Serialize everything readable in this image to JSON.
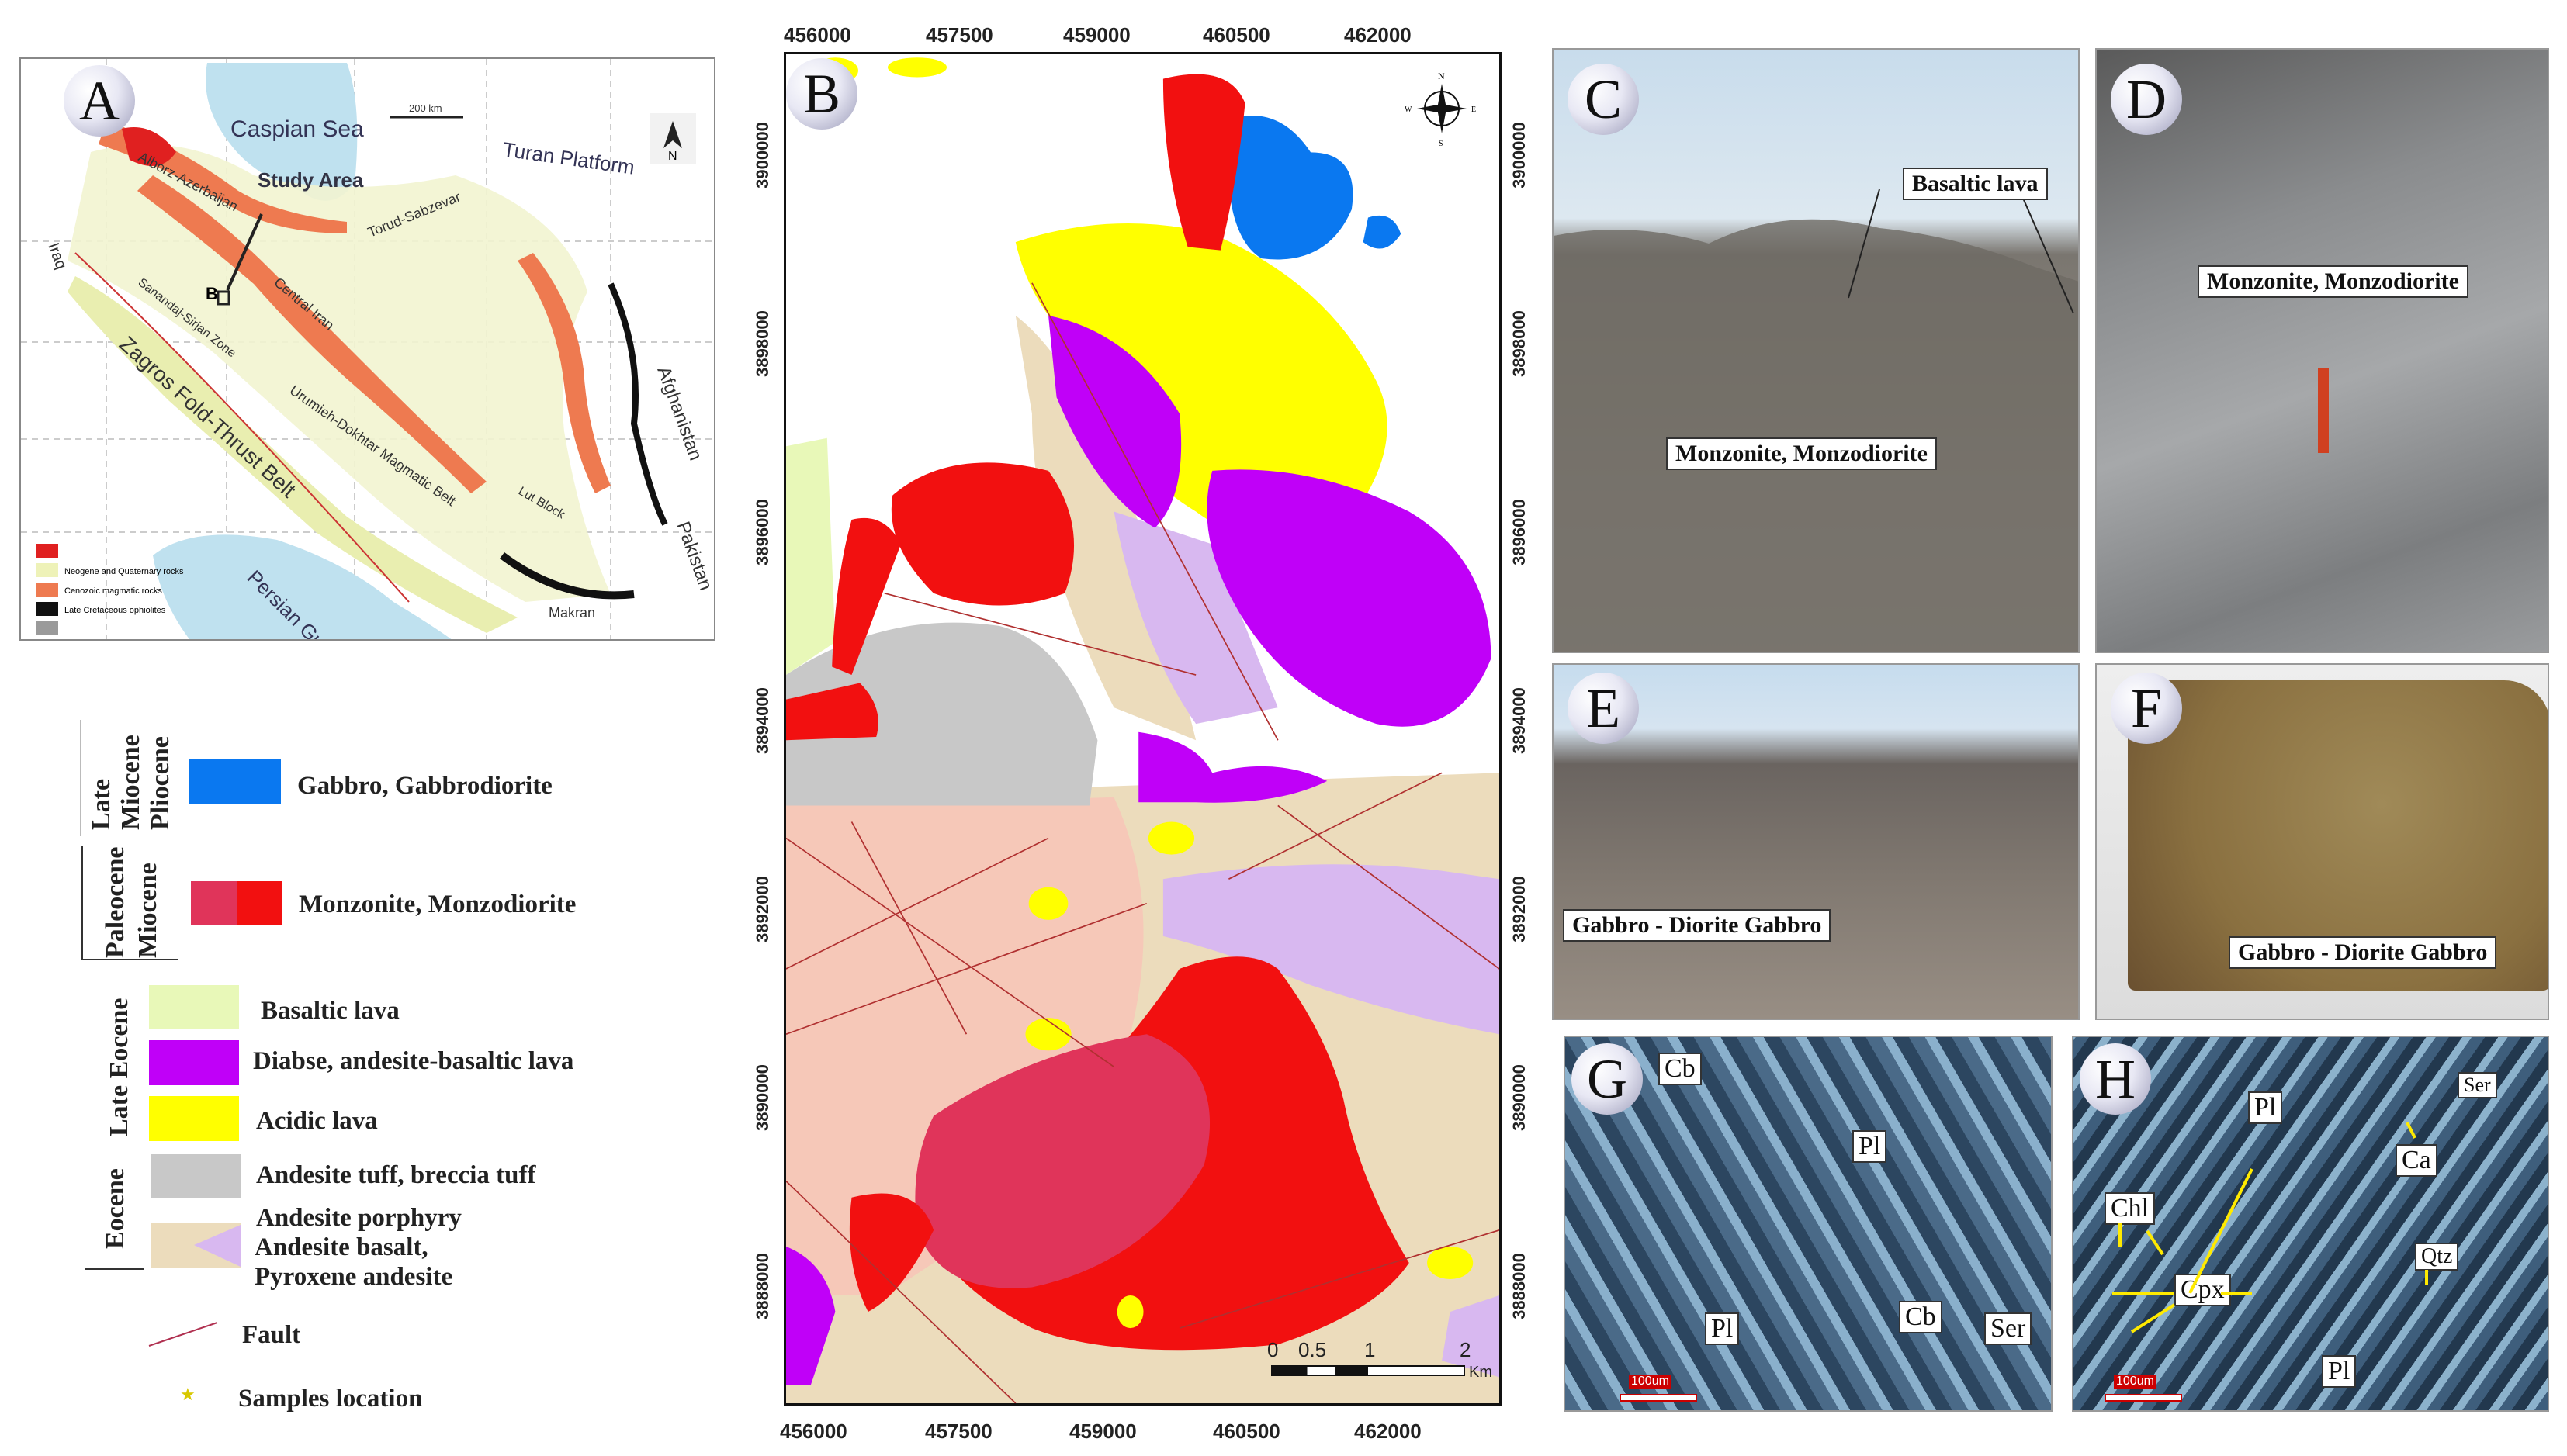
{
  "panels": {
    "a": "A",
    "b": "B",
    "c": "C",
    "d": "D",
    "e": "E",
    "f": "F",
    "g": "G",
    "h": "H"
  },
  "map_a": {
    "labels": {
      "caspian": "Caspian Sea",
      "turan": "Turan Platform",
      "study": "Study Area",
      "alborz": "Alborz-Azerbaijan",
      "torud": "Torud-Sabzevar",
      "central": "Central Iran",
      "sanandaj": "Sanandaj-Sirjan Zone",
      "zagros": "Zagros Fold-Thrust Belt",
      "urumieh": "Urumieh-Dokhtar Magmatic Belt",
      "lut": "Lut Block",
      "afghanistan": "Afghanistan",
      "pakistan": "Pakistan",
      "persian": "Persian Gulf",
      "makran": "Makran",
      "iraq": "Iraq",
      "b_marker": "B",
      "scale": "200 km",
      "north": "N"
    },
    "legend": [
      {
        "color": "#e02020",
        "label": ""
      },
      {
        "color": "#eef2b8",
        "label": "Neogene and Quaternary rocks"
      },
      {
        "color": "#ee7a50",
        "label": "Cenozoic magmatic rocks"
      },
      {
        "color": "#111111",
        "label": "Late Cretaceous ophiolites"
      },
      {
        "color": "#9a9a9a",
        "label": ""
      }
    ]
  },
  "legend_b": {
    "eras": [
      {
        "line1": "Late",
        "line2": "Miocene",
        "line3": "Pliocene"
      },
      {
        "line1": "Paleocene",
        "line2": "Miocene"
      },
      {
        "line1": "Late Eocene"
      },
      {
        "line1": "Eocene"
      }
    ],
    "units": [
      {
        "label": "Gabbro, Gabbrodiorite",
        "color": "#0a78f0"
      },
      {
        "label": "Monzonite, Monzodiorite",
        "color": "#f21010",
        "color2": "#e0345a"
      },
      {
        "label": "Basaltic lava",
        "color": "#e8f8b8"
      },
      {
        "label": "Diabse, andesite-basaltic lava",
        "color": "#c000f8"
      },
      {
        "label": "Acidic lava",
        "color": "#ffff00"
      },
      {
        "label": "Andesite tuff, breccia tuff",
        "color": "#c8c8c8"
      },
      {
        "label_lines": [
          "Andesite porphyry",
          "Andesite basalt,",
          "Pyroxene andesite"
        ],
        "color": "#ecdcbc",
        "color2": "#d8b8f0"
      }
    ],
    "fault": "Fault",
    "samples": "Samples location"
  },
  "map_b": {
    "x_ticks": [
      "456000",
      "457500",
      "459000",
      "460500",
      "462000"
    ],
    "y_ticks": [
      "3900000",
      "3898000",
      "3896000",
      "3894000",
      "3892000",
      "3890000",
      "3888000"
    ],
    "scale_labels": [
      "0",
      "0.5",
      "1",
      "2"
    ],
    "scale_unit": "Km",
    "compass": {
      "n": "N",
      "s": "S",
      "e": "E",
      "w": "W"
    }
  },
  "photos": {
    "c": {
      "labels": [
        "Basaltic lava",
        "Monzonite, Monzodiorite"
      ]
    },
    "d": {
      "labels": [
        "Monzonite, Monzodiorite"
      ]
    },
    "e": {
      "labels": [
        "Gabbro - Diorite Gabbro"
      ]
    },
    "f": {
      "labels": [
        "Gabbro - Diorite Gabbro"
      ]
    },
    "g": {
      "minerals": [
        "Cb",
        "Pl",
        "Pl",
        "Cb",
        "Ser"
      ],
      "scale": "100um"
    },
    "h": {
      "minerals": [
        "Pl",
        "Ser",
        "Ca",
        "Chl",
        "Cpx",
        "Qtz",
        "Pl"
      ],
      "scale": "100um"
    }
  }
}
